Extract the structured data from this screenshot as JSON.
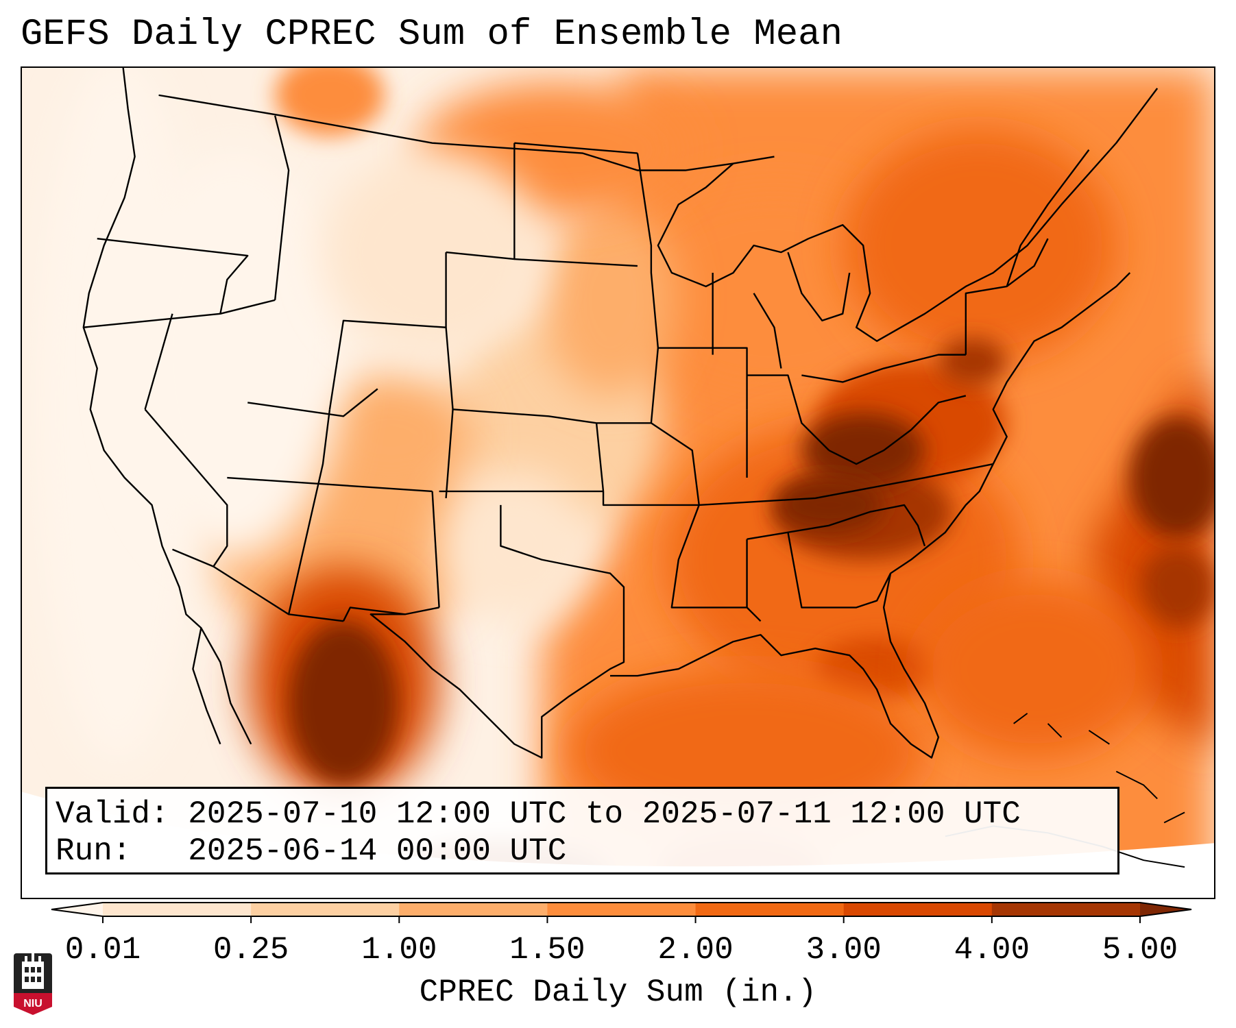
{
  "title": "GEFS Daily CPREC Sum of Ensemble Mean",
  "info": {
    "valid_label": "Valid:",
    "valid_value": "2025-07-10 12:00 UTC to 2025-07-11 12:00 UTC",
    "run_label": "Run:",
    "run_value": "2025-06-14 00:00 UTC"
  },
  "colorbar": {
    "label": "CPREC Daily Sum (in.)",
    "ticks": [
      "0.01",
      "0.25",
      "1.00",
      "1.50",
      "2.00",
      "3.00",
      "4.00",
      "5.00"
    ],
    "colors": [
      "#fff5eb",
      "#fee6ce",
      "#fdd0a2",
      "#fdae6b",
      "#fd8d3c",
      "#f16913",
      "#d94801",
      "#a63603",
      "#7f2704"
    ]
  },
  "logo": {
    "text": "NIU"
  },
  "map_regions": {
    "pacific_northwest": "0.01-0.25",
    "great_basin": "0.01-0.25",
    "southern_plains": "0.25-1.00",
    "tennessee_valley": "4.00-5.00",
    "ohio_valley": "3.00-4.00",
    "sierra_madre_mexico": "4.00-5.00",
    "gulf_of_mexico": "2.00-3.00",
    "western_atlantic": "3.00-5.00"
  }
}
